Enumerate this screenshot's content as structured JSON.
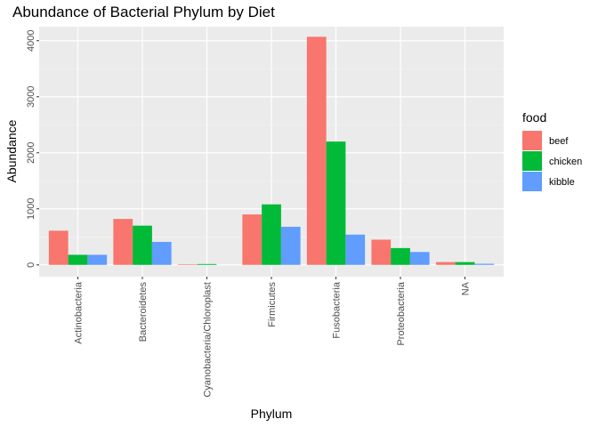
{
  "chart_data": {
    "type": "bar",
    "title": "Abundance of Bacterial Phylum by Diet",
    "xlabel": "Phylum",
    "ylabel": "Abundance",
    "categories": [
      "Actinobacteria",
      "Bacteroidetes",
      "Cyanobacteria/Chloroplast",
      "Firmicutes",
      "Fusobacteria",
      "Proteobacteria",
      "NA"
    ],
    "yticks": [
      "0",
      "1000",
      "2000",
      "3000",
      "4000"
    ],
    "ytick_values": [
      0,
      1000,
      2000,
      3000,
      4000
    ],
    "ylim": [
      -210,
      4250
    ],
    "grid": true,
    "legend": {
      "title": "food",
      "position": "right"
    },
    "series": [
      {
        "name": "beef",
        "color": "#F8766D",
        "values": [
          610,
          820,
          10,
          900,
          4070,
          450,
          50
        ]
      },
      {
        "name": "chicken",
        "color": "#00BA38",
        "values": [
          180,
          700,
          15,
          1080,
          2200,
          300,
          50
        ]
      },
      {
        "name": "kibble",
        "color": "#619CFF",
        "values": [
          180,
          410,
          0,
          680,
          540,
          230,
          20
        ]
      }
    ]
  }
}
